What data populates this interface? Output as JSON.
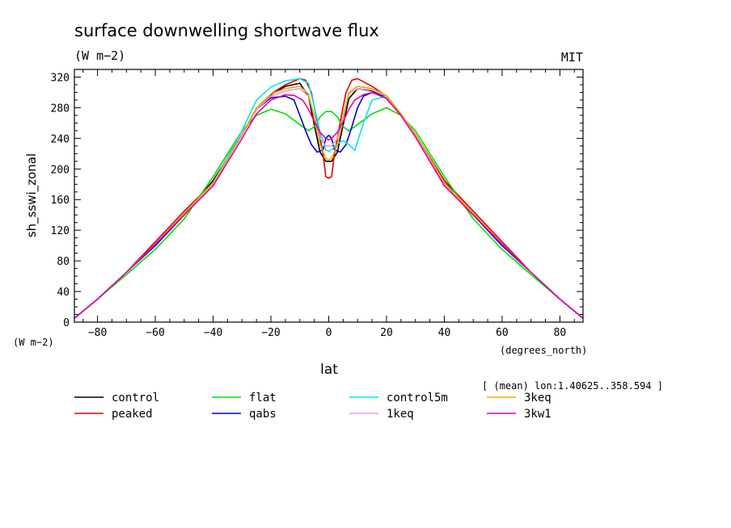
{
  "chart_data": {
    "type": "line",
    "title": "surface downwelling shortwave flux",
    "subtitle": "(W m−2)",
    "source_label": "MIT",
    "xlabel": "lat",
    "x_units": "(degrees_north)",
    "ylabel": "sh_sswi_zonal",
    "y_units": "(W m−2)",
    "annotation": "[ (mean) lon:1.40625..358.594 ]",
    "xlim": [
      -88,
      88
    ],
    "ylim": [
      0,
      330
    ],
    "x_ticks": [
      -80,
      -60,
      -40,
      -20,
      0,
      20,
      40,
      60,
      80
    ],
    "x_tick_labels": [
      "−80",
      "−60",
      "−40",
      "−20",
      "0",
      "20",
      "40",
      "60",
      "80"
    ],
    "y_ticks": [
      0,
      40,
      80,
      120,
      160,
      200,
      240,
      280,
      320
    ],
    "y_tick_labels": [
      "0",
      "40",
      "80",
      "120",
      "160",
      "200",
      "240",
      "280",
      "320"
    ],
    "grid": false,
    "legend_position": "bottom",
    "series": [
      {
        "name": "control",
        "color": "#000000",
        "x": [
          -88,
          -80,
          -70,
          -60,
          -50,
          -40,
          -30,
          -25,
          -20,
          -15,
          -10,
          -7,
          -5,
          -3,
          -1,
          0,
          1,
          3,
          5,
          7,
          10,
          15,
          20,
          25,
          30,
          40,
          50,
          60,
          70,
          80,
          88
        ],
        "y": [
          5,
          30,
          65,
          100,
          140,
          185,
          245,
          278,
          297,
          308,
          312,
          295,
          258,
          222,
          210,
          210,
          210,
          222,
          258,
          292,
          305,
          302,
          292,
          270,
          245,
          185,
          140,
          100,
          65,
          30,
          5
        ]
      },
      {
        "name": "peaked",
        "color": "#e00000",
        "x": [
          -88,
          -80,
          -70,
          -60,
          -50,
          -40,
          -30,
          -25,
          -20,
          -15,
          -10,
          -8,
          -6,
          -4,
          -2,
          -1,
          0,
          1,
          2,
          4,
          6,
          8,
          10,
          15,
          20,
          25,
          30,
          40,
          50,
          60,
          70,
          80,
          88
        ],
        "y": [
          5,
          30,
          65,
          105,
          145,
          182,
          245,
          278,
          298,
          310,
          318,
          316,
          300,
          262,
          220,
          190,
          188,
          190,
          220,
          262,
          300,
          316,
          318,
          308,
          295,
          270,
          245,
          185,
          145,
          105,
          65,
          30,
          5
        ]
      },
      {
        "name": "flat",
        "color": "#00dd00",
        "x": [
          -88,
          -80,
          -70,
          -60,
          -50,
          -40,
          -30,
          -25,
          -20,
          -15,
          -10,
          -7,
          -5,
          -3,
          -1,
          0,
          1,
          3,
          5,
          7,
          10,
          15,
          20,
          25,
          30,
          40,
          50,
          60,
          70,
          80,
          88
        ],
        "y": [
          5,
          30,
          62,
          95,
          135,
          190,
          250,
          270,
          278,
          272,
          258,
          250,
          255,
          268,
          275,
          275,
          275,
          268,
          255,
          250,
          258,
          272,
          280,
          270,
          250,
          190,
          135,
          95,
          62,
          30,
          5
        ]
      },
      {
        "name": "qabs",
        "color": "#0000cc",
        "x": [
          -88,
          -80,
          -70,
          -60,
          -50,
          -40,
          -30,
          -25,
          -20,
          -15,
          -12,
          -10,
          -8,
          -6,
          -4,
          -2,
          -1,
          0,
          1,
          2,
          4,
          6,
          8,
          10,
          12,
          15,
          20,
          25,
          30,
          40,
          50,
          60,
          70,
          80,
          88
        ],
        "y": [
          5,
          30,
          65,
          100,
          140,
          182,
          245,
          278,
          293,
          295,
          290,
          270,
          250,
          232,
          222,
          225,
          240,
          244,
          240,
          225,
          222,
          232,
          255,
          280,
          295,
          300,
          295,
          270,
          245,
          182,
          140,
          100,
          65,
          30,
          5
        ]
      },
      {
        "name": "control5m",
        "color": "#00e8e8",
        "x": [
          -88,
          -80,
          -70,
          -60,
          -50,
          -40,
          -30,
          -25,
          -20,
          -15,
          -10,
          -7,
          -5,
          -3,
          -1,
          0,
          1,
          3,
          5,
          7,
          9,
          12,
          15,
          20,
          25,
          30,
          40,
          50,
          60,
          70,
          80,
          88
        ],
        "y": [
          5,
          30,
          65,
          102,
          142,
          182,
          250,
          290,
          307,
          315,
          318,
          312,
          282,
          248,
          225,
          223,
          225,
          233,
          237,
          232,
          224,
          260,
          290,
          295,
          272,
          245,
          182,
          142,
          102,
          65,
          30,
          5
        ]
      },
      {
        "name": "1keq",
        "color": "#ee99dd",
        "x": [
          -88,
          -80,
          -70,
          -60,
          -50,
          -40,
          -30,
          -25,
          -20,
          -15,
          -10,
          -7,
          -5,
          -3,
          -1,
          0,
          1,
          3,
          5,
          7,
          10,
          15,
          20,
          25,
          30,
          40,
          50,
          60,
          70,
          80,
          88
        ],
        "y": [
          5,
          30,
          65,
          102,
          142,
          180,
          245,
          278,
          295,
          302,
          305,
          295,
          270,
          240,
          230,
          230,
          230,
          240,
          270,
          298,
          305,
          303,
          295,
          270,
          245,
          180,
          142,
          102,
          65,
          30,
          5
        ]
      },
      {
        "name": "3keq",
        "color": "#f0a800",
        "x": [
          -88,
          -80,
          -70,
          -60,
          -50,
          -40,
          -30,
          -25,
          -20,
          -15,
          -10,
          -7,
          -5,
          -3,
          -1,
          0,
          1,
          3,
          5,
          7,
          10,
          15,
          20,
          25,
          30,
          40,
          50,
          60,
          70,
          80,
          88
        ],
        "y": [
          5,
          30,
          65,
          102,
          142,
          182,
          245,
          280,
          298,
          305,
          308,
          298,
          268,
          232,
          214,
          212,
          214,
          232,
          268,
          300,
          308,
          305,
          296,
          272,
          246,
          182,
          142,
          102,
          65,
          30,
          5
        ]
      },
      {
        "name": "3kw1",
        "color": "#e000b0",
        "x": [
          -88,
          -80,
          -70,
          -60,
          -50,
          -40,
          -30,
          -25,
          -20,
          -15,
          -12,
          -9,
          -7,
          -5,
          -3,
          -1,
          0,
          1,
          3,
          5,
          7,
          9,
          12,
          15,
          20,
          25,
          30,
          40,
          50,
          60,
          70,
          80,
          88
        ],
        "y": [
          5,
          30,
          65,
          102,
          140,
          178,
          240,
          272,
          290,
          297,
          296,
          290,
          278,
          262,
          248,
          240,
          238,
          240,
          248,
          262,
          278,
          290,
          297,
          300,
          292,
          270,
          242,
          178,
          140,
          102,
          65,
          30,
          5
        ]
      }
    ]
  }
}
